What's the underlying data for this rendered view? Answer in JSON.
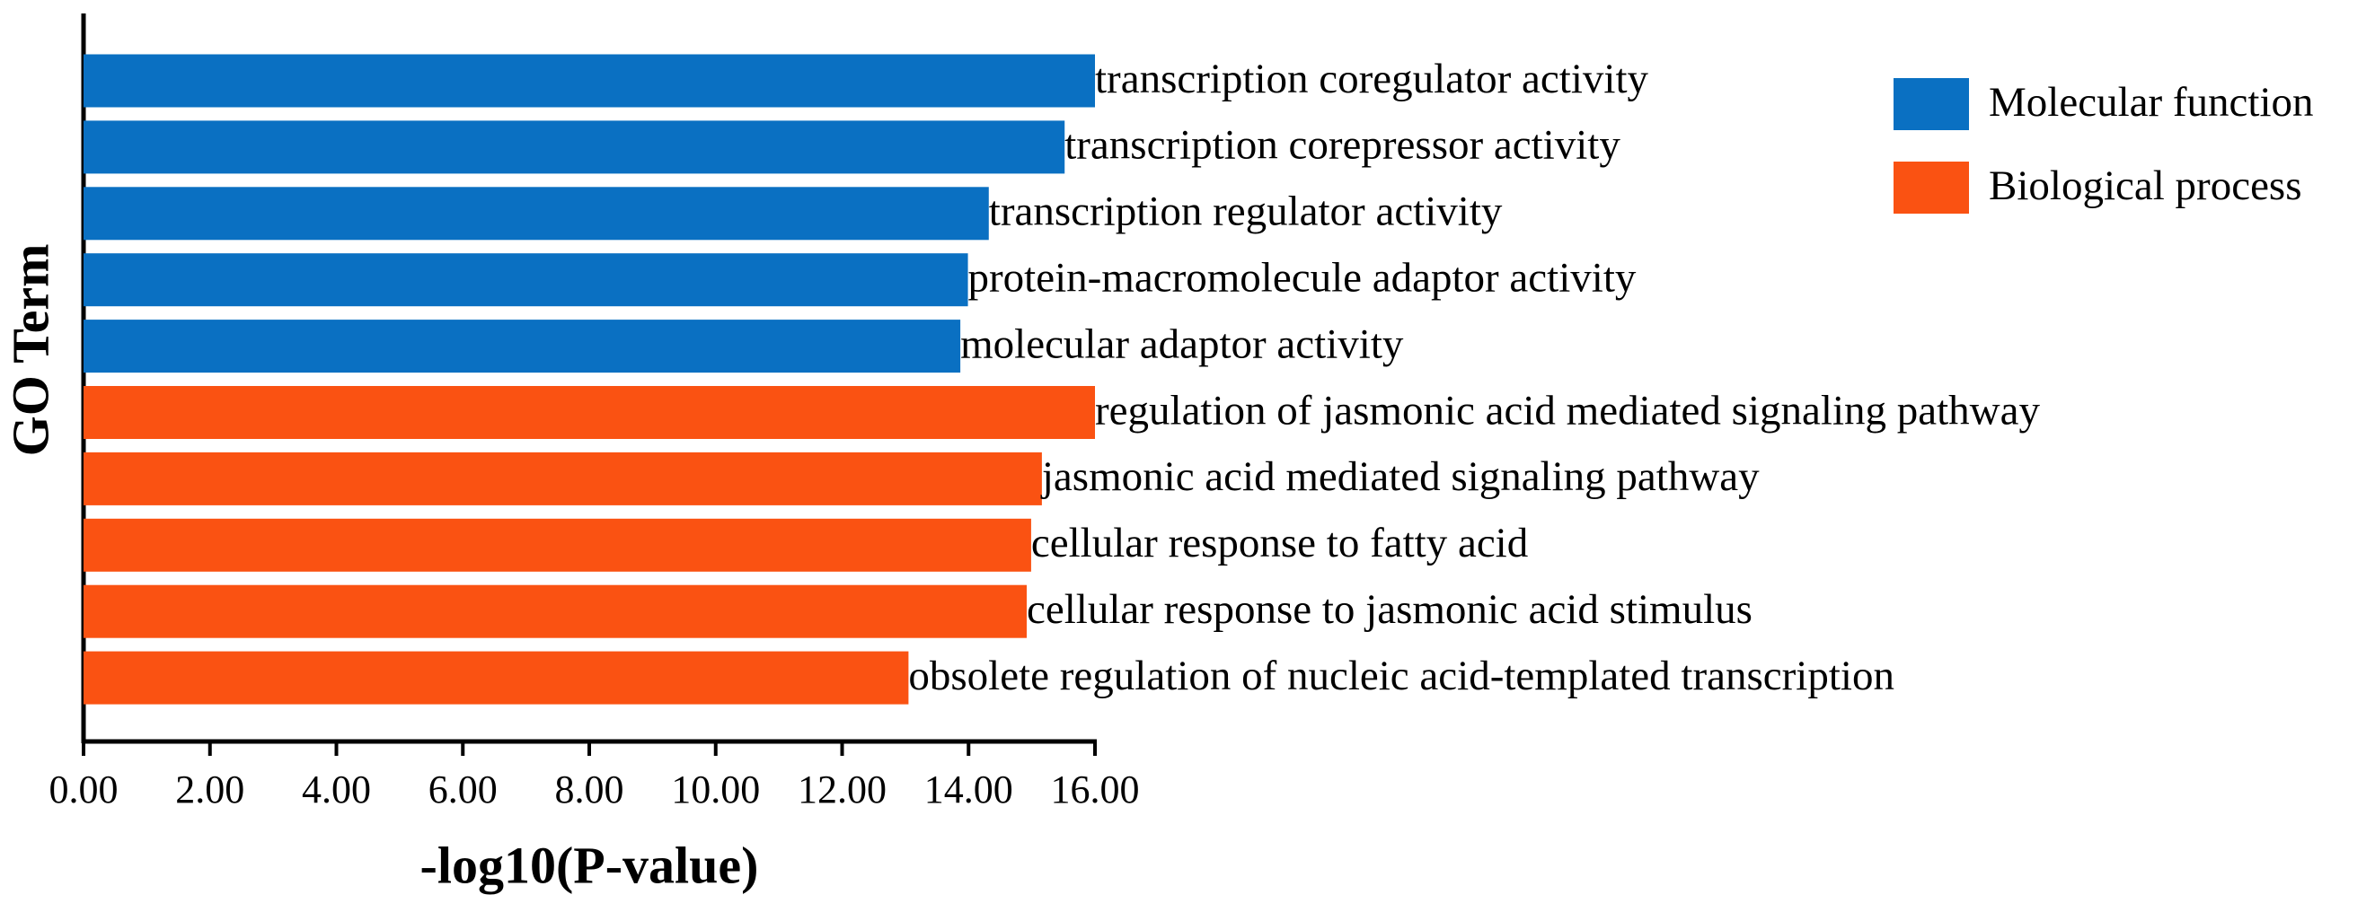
{
  "chart_data": {
    "type": "barh",
    "xlabel": "-log10(P-value)",
    "ylabel": "GO Term",
    "categories": [
      "transcription coregulator activity",
      "transcription corepressor activity",
      "transcription regulator activity",
      "protein-macromolecule adaptor activity",
      "molecular adaptor activity",
      "regulation of jasmonic acid mediated signaling pathway",
      "jasmonic acid mediated signaling pathway",
      "cellular response to fatty acid",
      "cellular response to jasmonic acid stimulus",
      "obsolete regulation of nucleic acid-templated transcription"
    ],
    "series": [
      {
        "name": "Molecular function",
        "color": "#0a70c2",
        "values": [
          16.0,
          15.52,
          14.32,
          13.99,
          13.87,
          null,
          null,
          null,
          null,
          null
        ]
      },
      {
        "name": "Biological process",
        "color": "#fa5212",
        "values": [
          null,
          null,
          null,
          null,
          null,
          16.0,
          15.16,
          14.99,
          14.92,
          13.05
        ]
      }
    ],
    "xlim": [
      0,
      16
    ],
    "xticks": [
      {
        "value": 0,
        "label": "0.00"
      },
      {
        "value": 2,
        "label": "2.00"
      },
      {
        "value": 4,
        "label": "4.00"
      },
      {
        "value": 6,
        "label": "6.00"
      },
      {
        "value": 8,
        "label": "8.00"
      },
      {
        "value": 10,
        "label": "10.00"
      },
      {
        "value": 12,
        "label": "12.00"
      },
      {
        "value": 14,
        "label": "14.00"
      },
      {
        "value": 16,
        "label": "16.00"
      }
    ],
    "legend": "upper right"
  }
}
